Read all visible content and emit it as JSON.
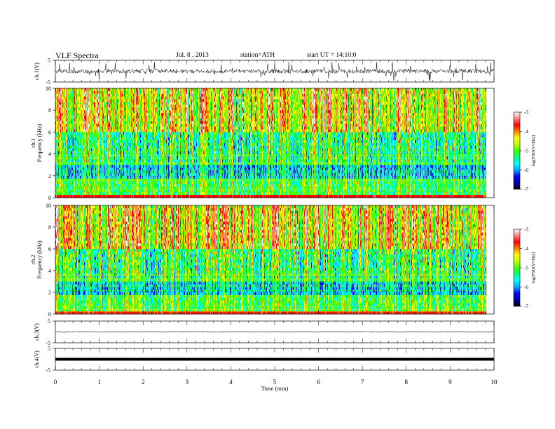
{
  "header": {
    "title": "VLF  Spectra",
    "date": "Jul. 8 , 2013",
    "station": "station=ATH",
    "start": "start  UT  =   14:10:0"
  },
  "colors": {
    "colormap": [
      "#000000",
      "#0000aa",
      "#0000ff",
      "#00aaff",
      "#00ffff",
      "#00ff80",
      "#40ff00",
      "#c0ff00",
      "#ffff00",
      "#ff8000",
      "#ff0000",
      "#ff8080",
      "#ffffff"
    ],
    "trace": "#000000"
  },
  "chart_data": [
    {
      "type": "line",
      "panel": "ch1-waveform",
      "ylabel": "ch.1(V)",
      "ytick_labels": [
        "5",
        "-5"
      ],
      "ylim": [
        -5,
        5
      ],
      "xlim": [
        0,
        10
      ],
      "series": [
        {
          "values_description_mean": 0.0,
          "noise_peak": 5
        }
      ]
    },
    {
      "type": "heatmap",
      "panel": "ch1-spectrogram",
      "ylabel_line1": "ch.1",
      "ylabel_line2": "Frequency  (kHz)",
      "ytick_labels": [
        "10",
        "8",
        "6",
        "4",
        "2",
        "0"
      ],
      "yticks": [
        10,
        8,
        6,
        4,
        2,
        0
      ],
      "ylim": [
        0,
        10
      ],
      "xlim": [
        0,
        9.83
      ],
      "colorbar": {
        "label": "log(PSD(V²/Hz))",
        "range": [
          -7,
          -3
        ],
        "tick_labels": [
          "-3",
          "-4",
          "-5",
          "-6",
          "-7"
        ]
      }
    },
    {
      "type": "heatmap",
      "panel": "ch2-spectrogram",
      "ylabel_line1": "ch.2",
      "ylabel_line2": "Frequency  (kHz)",
      "ytick_labels": [
        "10",
        "8",
        "6",
        "4",
        "2",
        "0"
      ],
      "yticks": [
        10,
        8,
        6,
        4,
        2,
        0
      ],
      "ylim": [
        0,
        10
      ],
      "xlim": [
        0,
        9.83
      ],
      "colorbar": {
        "label": "log(PSD(V²/Hz))",
        "range": [
          -7,
          -3
        ],
        "tick_labels": [
          "-3",
          "-4",
          "-5",
          "-6",
          "-7"
        ]
      }
    },
    {
      "type": "line",
      "panel": "ch3-waveform",
      "ylabel": "ch.3(V)",
      "ytick_labels": [
        "5",
        "-5"
      ],
      "ylim": [
        -5,
        5
      ],
      "xlim": [
        0,
        10
      ],
      "series": [
        {
          "level": 0.0
        }
      ]
    },
    {
      "type": "line",
      "panel": "ch4-waveform",
      "ylabel": "ch.4(V)",
      "ytick_labels": [
        "5",
        "-5"
      ],
      "ylim": [
        -5,
        5
      ],
      "xlim": [
        0,
        10
      ],
      "series": [
        {
          "level": 0.0
        }
      ]
    }
  ],
  "xaxis": {
    "label": "Time  (min)",
    "tick_labels": [
      "0",
      "1",
      "2",
      "3",
      "4",
      "5",
      "6",
      "7",
      "8",
      "9",
      "10"
    ],
    "ticks": [
      0,
      1,
      2,
      3,
      4,
      5,
      6,
      7,
      8,
      9,
      10
    ],
    "range": [
      0,
      10
    ]
  }
}
